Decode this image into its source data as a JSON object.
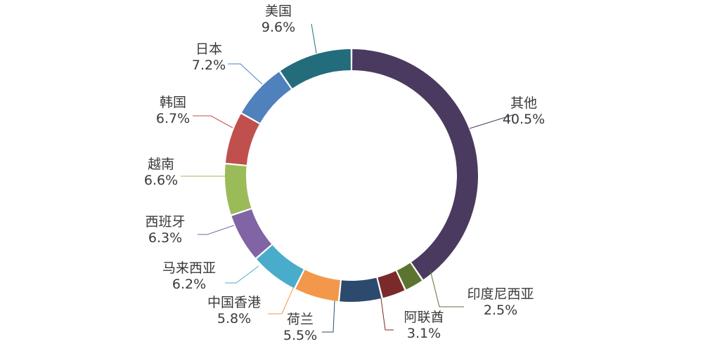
{
  "chart_data": {
    "type": "pie",
    "variant": "donut",
    "start": "12 o'clock",
    "direction": "clockwise",
    "title": "",
    "slices": [
      {
        "label": "其他",
        "value": 40.5,
        "value_label": "40.5%",
        "color": "#4b3a5f"
      },
      {
        "label": "印度尼西亚",
        "value": 2.5,
        "value_label": "2.5%",
        "color": "#5b7430"
      },
      {
        "label": "阿联酋",
        "value": 3.1,
        "value_label": "3.1%",
        "color": "#7a2a2a"
      },
      {
        "label": "荷兰",
        "value": 5.5,
        "value_label": "5.5%",
        "color": "#2c4a6e"
      },
      {
        "label": "中国香港",
        "value": 5.8,
        "value_label": "5.8%",
        "color": "#f3974a"
      },
      {
        "label": "马来西亚",
        "value": 6.2,
        "value_label": "6.2%",
        "color": "#4aaccb"
      },
      {
        "label": "西班牙",
        "value": 6.3,
        "value_label": "6.3%",
        "color": "#8064a6"
      },
      {
        "label": "越南",
        "value": 6.6,
        "value_label": "6.6%",
        "color": "#9bbb59"
      },
      {
        "label": "韩国",
        "value": 6.7,
        "value_label": "6.7%",
        "color": "#c0504d"
      },
      {
        "label": "日本",
        "value": 7.2,
        "value_label": "7.2%",
        "color": "#4f81bd"
      },
      {
        "label": "美国",
        "value": 9.6,
        "value_label": "9.6%",
        "color": "#236c7c"
      }
    ]
  }
}
